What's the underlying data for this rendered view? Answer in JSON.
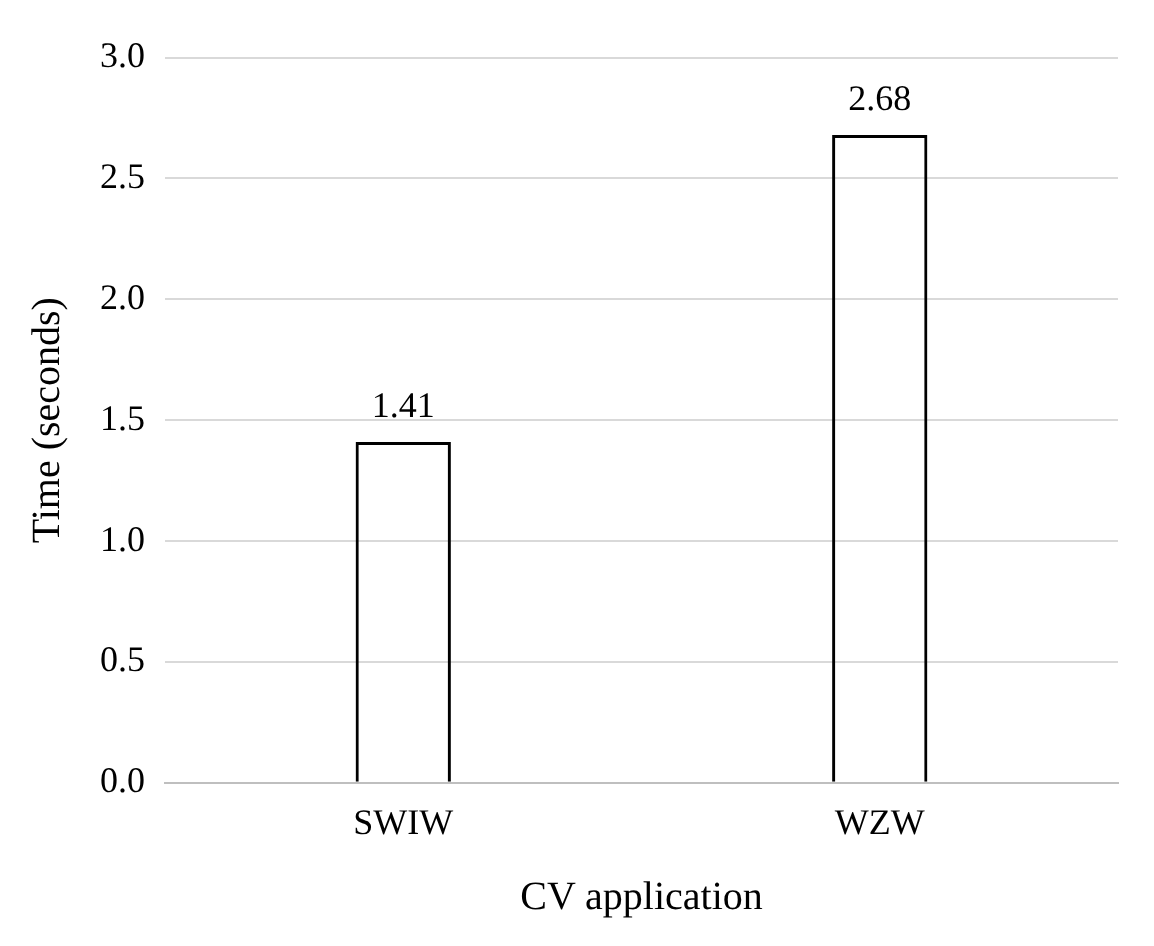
{
  "chart_data": {
    "type": "bar",
    "categories": [
      "SWIW",
      "WZW"
    ],
    "values": [
      1.41,
      2.68
    ],
    "color": "#000000",
    "xlabel": "CV application",
    "ylabel": "Time (seconds)",
    "ylim": [
      0,
      3
    ],
    "yticks": [
      {
        "value": 0,
        "label": "0.0"
      },
      0.5,
      {
        "value": 1,
        "label": "1.0"
      },
      1.5,
      {
        "value": 2,
        "label": "2.0"
      },
      2.5,
      {
        "value": 3,
        "label": "3.0"
      }
    ],
    "grid": "y",
    "data_labels": true,
    "legend": false
  }
}
